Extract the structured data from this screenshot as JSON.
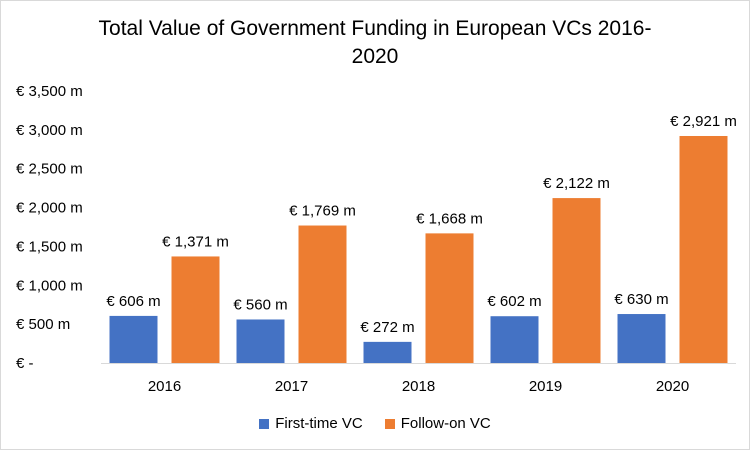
{
  "chart_data": {
    "type": "bar",
    "title_lines": [
      "Total Value of Government Funding in European VCs 2016-",
      "2020"
    ],
    "xlabel": "",
    "ylabel": "",
    "categories": [
      "2016",
      "2017",
      "2018",
      "2019",
      "2020"
    ],
    "ylim": [
      0,
      3500
    ],
    "yticks": [
      0,
      500,
      1000,
      1500,
      2000,
      2500,
      3000,
      3500
    ],
    "ytick_labels": [
      "€ -",
      "€ 500 m",
      "€ 1,000 m",
      "€ 1,500 m",
      "€ 2,000 m",
      "€ 2,500 m",
      "€ 3,000 m",
      "€ 3,500 m"
    ],
    "grid": false,
    "legend_position": "bottom",
    "series": [
      {
        "name": "First-time VC",
        "color": "#4472C4",
        "values": [
          606,
          560,
          272,
          602,
          630
        ],
        "labels": [
          "€ 606 m",
          "€ 560 m",
          "€ 272 m",
          "€ 602 m",
          "€ 630 m"
        ]
      },
      {
        "name": "Follow-on VC",
        "color": "#ED7D31",
        "values": [
          1371,
          1769,
          1668,
          2122,
          2921
        ],
        "labels": [
          "€ 1,371 m",
          "€ 1,769 m",
          "€ 1,668 m",
          "€ 2,122 m",
          "€ 2,921 m"
        ]
      }
    ]
  }
}
